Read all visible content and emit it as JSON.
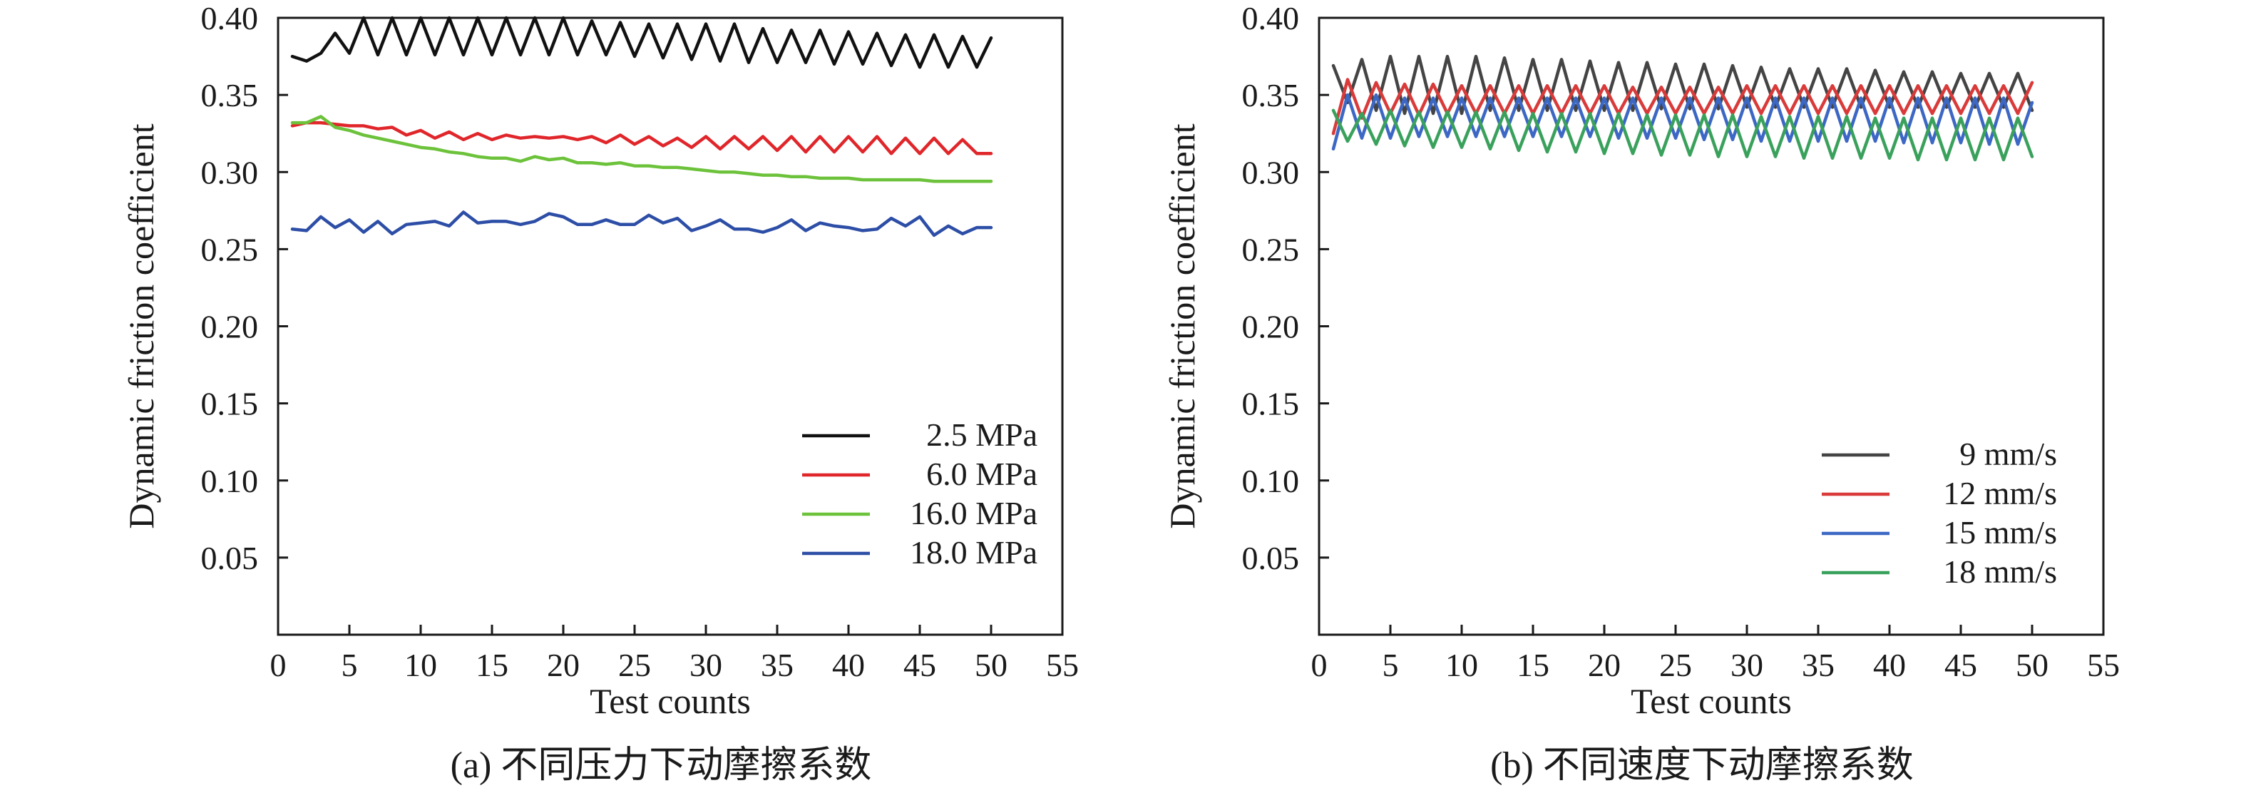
{
  "chart_data": [
    {
      "type": "line",
      "caption": "(a) 不同压力下动摩擦系数",
      "xlabel": "Test counts",
      "ylabel": "Dynamic friction coefficient",
      "xlim": [
        0,
        55
      ],
      "ylim": [
        0,
        0.4
      ],
      "xticks": [
        "0",
        "5",
        "10",
        "15",
        "20",
        "25",
        "30",
        "35",
        "40",
        "45",
        "50",
        "55"
      ],
      "yticks": [
        "0.05",
        "0.10",
        "0.15",
        "0.20",
        "0.25",
        "0.30",
        "0.35",
        "0.40"
      ],
      "legend_position": "bottom-right",
      "grid": false,
      "x": [
        1,
        2,
        3,
        4,
        5,
        6,
        7,
        8,
        9,
        10,
        11,
        12,
        13,
        14,
        15,
        16,
        17,
        18,
        19,
        20,
        21,
        22,
        23,
        24,
        25,
        26,
        27,
        28,
        29,
        30,
        31,
        32,
        33,
        34,
        35,
        36,
        37,
        38,
        39,
        40,
        41,
        42,
        43,
        44,
        45,
        46,
        47,
        48,
        49,
        50
      ],
      "series": [
        {
          "name": "2.5 MPa",
          "color": "#111111",
          "values": [
            0.375,
            0.372,
            0.377,
            0.39,
            0.377,
            0.4,
            0.376,
            0.4,
            0.376,
            0.4,
            0.376,
            0.4,
            0.376,
            0.4,
            0.376,
            0.4,
            0.376,
            0.4,
            0.376,
            0.4,
            0.376,
            0.398,
            0.376,
            0.397,
            0.375,
            0.396,
            0.374,
            0.396,
            0.373,
            0.396,
            0.372,
            0.396,
            0.371,
            0.393,
            0.371,
            0.392,
            0.371,
            0.392,
            0.37,
            0.391,
            0.37,
            0.39,
            0.369,
            0.389,
            0.368,
            0.389,
            0.368,
            0.388,
            0.368,
            0.387
          ]
        },
        {
          "name": "6.0 MPa",
          "color": "#e0262a",
          "values": [
            0.33,
            0.332,
            0.332,
            0.331,
            0.33,
            0.33,
            0.328,
            0.329,
            0.324,
            0.327,
            0.322,
            0.326,
            0.321,
            0.325,
            0.321,
            0.324,
            0.322,
            0.323,
            0.322,
            0.323,
            0.321,
            0.323,
            0.319,
            0.324,
            0.318,
            0.323,
            0.317,
            0.322,
            0.316,
            0.323,
            0.315,
            0.323,
            0.315,
            0.323,
            0.314,
            0.323,
            0.313,
            0.323,
            0.313,
            0.323,
            0.313,
            0.323,
            0.312,
            0.322,
            0.312,
            0.322,
            0.312,
            0.321,
            0.312,
            0.312
          ]
        },
        {
          "name": "16.0 MPa",
          "color": "#6cc23a",
          "values": [
            0.332,
            0.332,
            0.336,
            0.329,
            0.327,
            0.324,
            0.322,
            0.32,
            0.318,
            0.316,
            0.315,
            0.313,
            0.312,
            0.31,
            0.309,
            0.309,
            0.307,
            0.31,
            0.308,
            0.309,
            0.306,
            0.306,
            0.305,
            0.306,
            0.304,
            0.304,
            0.303,
            0.303,
            0.302,
            0.301,
            0.3,
            0.3,
            0.299,
            0.298,
            0.298,
            0.297,
            0.297,
            0.296,
            0.296,
            0.296,
            0.295,
            0.295,
            0.295,
            0.295,
            0.295,
            0.294,
            0.294,
            0.294,
            0.294,
            0.294
          ]
        },
        {
          "name": "18.0 MPa",
          "color": "#2d4ea6",
          "values": [
            0.263,
            0.262,
            0.271,
            0.264,
            0.269,
            0.261,
            0.268,
            0.26,
            0.266,
            0.267,
            0.268,
            0.265,
            0.274,
            0.267,
            0.268,
            0.268,
            0.266,
            0.268,
            0.273,
            0.271,
            0.266,
            0.266,
            0.269,
            0.266,
            0.266,
            0.272,
            0.267,
            0.27,
            0.262,
            0.265,
            0.269,
            0.263,
            0.263,
            0.261,
            0.264,
            0.269,
            0.262,
            0.267,
            0.265,
            0.264,
            0.262,
            0.263,
            0.27,
            0.265,
            0.271,
            0.259,
            0.265,
            0.26,
            0.264,
            0.264
          ]
        }
      ]
    },
    {
      "type": "line",
      "caption": "(b) 不同速度下动摩擦系数",
      "xlabel": "Test counts",
      "ylabel": "Dynamic friction coefficient",
      "xlim": [
        0,
        55
      ],
      "ylim": [
        0,
        0.4
      ],
      "xticks": [
        "0",
        "5",
        "10",
        "15",
        "20",
        "25",
        "30",
        "35",
        "40",
        "45",
        "50",
        "55"
      ],
      "yticks": [
        "0.05",
        "0.10",
        "0.15",
        "0.20",
        "0.25",
        "0.30",
        "0.35",
        "0.40"
      ],
      "legend_position": "bottom-right",
      "grid": false,
      "x": [
        1,
        2,
        3,
        4,
        5,
        6,
        7,
        8,
        9,
        10,
        11,
        12,
        13,
        14,
        15,
        16,
        17,
        18,
        19,
        20,
        21,
        22,
        23,
        24,
        25,
        26,
        27,
        28,
        29,
        30,
        31,
        32,
        33,
        34,
        35,
        36,
        37,
        38,
        39,
        40,
        41,
        42,
        43,
        44,
        45,
        46,
        47,
        48,
        49,
        50
      ],
      "series": [
        {
          "name": "9 mm/s",
          "color": "#444444",
          "values": [
            0.369,
            0.345,
            0.373,
            0.34,
            0.375,
            0.338,
            0.375,
            0.338,
            0.375,
            0.338,
            0.375,
            0.34,
            0.374,
            0.34,
            0.373,
            0.34,
            0.373,
            0.34,
            0.372,
            0.34,
            0.371,
            0.34,
            0.371,
            0.341,
            0.37,
            0.341,
            0.37,
            0.341,
            0.369,
            0.342,
            0.368,
            0.342,
            0.367,
            0.342,
            0.367,
            0.342,
            0.367,
            0.342,
            0.366,
            0.342,
            0.365,
            0.342,
            0.365,
            0.342,
            0.364,
            0.342,
            0.364,
            0.342,
            0.364,
            0.34
          ]
        },
        {
          "name": "12 mm/s",
          "color": "#d93a3a",
          "values": [
            0.325,
            0.36,
            0.335,
            0.358,
            0.338,
            0.357,
            0.337,
            0.357,
            0.338,
            0.356,
            0.338,
            0.356,
            0.338,
            0.356,
            0.338,
            0.356,
            0.338,
            0.356,
            0.338,
            0.356,
            0.338,
            0.355,
            0.338,
            0.355,
            0.338,
            0.355,
            0.338,
            0.355,
            0.338,
            0.356,
            0.338,
            0.356,
            0.338,
            0.356,
            0.338,
            0.356,
            0.338,
            0.356,
            0.338,
            0.356,
            0.338,
            0.356,
            0.338,
            0.356,
            0.338,
            0.356,
            0.338,
            0.356,
            0.338,
            0.358
          ]
        },
        {
          "name": "15 mm/s",
          "color": "#3c67c4",
          "values": [
            0.315,
            0.35,
            0.322,
            0.35,
            0.322,
            0.348,
            0.323,
            0.348,
            0.323,
            0.348,
            0.323,
            0.348,
            0.323,
            0.348,
            0.323,
            0.348,
            0.323,
            0.348,
            0.323,
            0.348,
            0.322,
            0.348,
            0.322,
            0.348,
            0.322,
            0.348,
            0.321,
            0.348,
            0.321,
            0.348,
            0.32,
            0.348,
            0.32,
            0.348,
            0.32,
            0.348,
            0.32,
            0.348,
            0.32,
            0.348,
            0.319,
            0.348,
            0.319,
            0.348,
            0.319,
            0.348,
            0.318,
            0.348,
            0.318,
            0.345
          ]
        },
        {
          "name": "18 mm/s",
          "color": "#3aa15c",
          "values": [
            0.34,
            0.32,
            0.338,
            0.318,
            0.34,
            0.317,
            0.339,
            0.316,
            0.339,
            0.316,
            0.339,
            0.315,
            0.339,
            0.314,
            0.338,
            0.313,
            0.338,
            0.313,
            0.338,
            0.312,
            0.338,
            0.312,
            0.337,
            0.311,
            0.337,
            0.311,
            0.337,
            0.31,
            0.337,
            0.31,
            0.336,
            0.31,
            0.336,
            0.309,
            0.336,
            0.309,
            0.336,
            0.309,
            0.335,
            0.309,
            0.335,
            0.308,
            0.335,
            0.308,
            0.335,
            0.308,
            0.335,
            0.308,
            0.335,
            0.31
          ]
        }
      ]
    }
  ]
}
